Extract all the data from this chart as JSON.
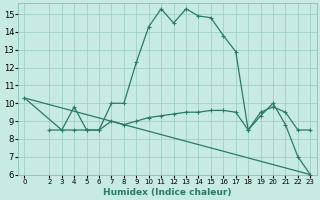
{
  "xlabel": "Humidex (Indice chaleur)",
  "bg_color": "#c8eae5",
  "grid_color": "#a0cfc8",
  "line_color": "#2a7a6a",
  "xlim": [
    -0.5,
    23.5
  ],
  "ylim": [
    6,
    15.6
  ],
  "yticks": [
    6,
    7,
    8,
    9,
    10,
    11,
    12,
    13,
    14,
    15
  ],
  "xticks": [
    0,
    2,
    3,
    4,
    5,
    6,
    7,
    8,
    9,
    10,
    11,
    12,
    13,
    14,
    15,
    16,
    17,
    18,
    19,
    20,
    21,
    22,
    23
  ],
  "line1_x": [
    0,
    3,
    4,
    5,
    6,
    7,
    8,
    9,
    10,
    11,
    12,
    13,
    14,
    15,
    16,
    17,
    18,
    19,
    20,
    21,
    22,
    23
  ],
  "line1_y": [
    10.3,
    8.5,
    8.5,
    8.5,
    8.5,
    10.0,
    10.0,
    12.3,
    14.3,
    15.3,
    14.5,
    15.3,
    14.9,
    14.8,
    13.8,
    12.9,
    8.5,
    9.3,
    10.0,
    8.8,
    7.0,
    6.0
  ],
  "line2_x": [
    2,
    3,
    4,
    5,
    6,
    7,
    8,
    9,
    10,
    11,
    12,
    13,
    14,
    15,
    16,
    17,
    18,
    19,
    20,
    21,
    22,
    23
  ],
  "line2_y": [
    8.5,
    8.5,
    9.8,
    8.5,
    8.5,
    9.0,
    8.8,
    9.0,
    9.2,
    9.3,
    9.4,
    9.5,
    9.5,
    9.6,
    9.6,
    9.5,
    8.5,
    9.5,
    9.8,
    9.5,
    8.5,
    8.5
  ],
  "line3_x": [
    0,
    23
  ],
  "line3_y": [
    10.3,
    6.0
  ]
}
